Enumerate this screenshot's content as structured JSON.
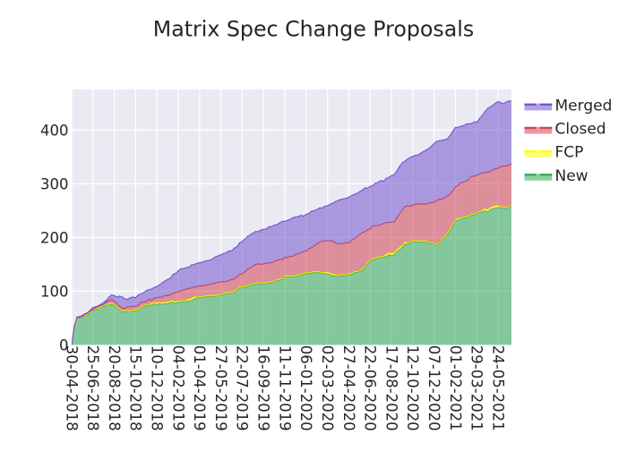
{
  "chart_data": {
    "type": "area",
    "title": "Matrix Spec Change Proposals",
    "stacked": true,
    "x_tick_labels": [
      "30-04-2018",
      "25-06-2018",
      "20-08-2018",
      "15-10-2018",
      "10-12-2018",
      "04-02-2019",
      "01-04-2019",
      "27-05-2019",
      "22-07-2019",
      "16-09-2019",
      "11-11-2019",
      "06-01-2020",
      "02-03-2020",
      "27-04-2020",
      "22-06-2020",
      "17-08-2020",
      "12-10-2020",
      "07-12-2020",
      "01-02-2021",
      "29-03-2021",
      "24-05-2021"
    ],
    "x_tick_interval_weeks": 8,
    "y_ticks": [
      0,
      100,
      200,
      300,
      400
    ],
    "ylim": [
      0,
      475.5
    ],
    "grid": "white on light-blue panel",
    "legend_position": "outside upper right",
    "plot_bg": "#EAEAF2",
    "text_color": "#262626",
    "fill_alpha": 0.55,
    "legend": [
      {
        "label": "Merged",
        "color": "#7253CE"
      },
      {
        "label": "Closed",
        "color": "#CF4454"
      },
      {
        "label": "FCP",
        "color": "#FFFF00"
      },
      {
        "label": "New",
        "color": "#32AA56"
      }
    ],
    "series": [
      {
        "name": "New",
        "color": "#32AA56",
        "values": [
          0,
          33,
          50,
          51,
          51,
          54,
          56,
          58,
          64,
          66,
          67,
          70,
          72,
          74,
          75,
          76,
          74,
          69,
          65,
          62,
          63,
          62,
          62,
          64,
          63,
          65,
          69,
          71,
          74,
          74,
          75,
          77,
          75,
          77,
          76,
          77,
          77,
          79,
          80,
          78,
          80,
          80,
          81,
          81,
          82,
          83,
          86,
          88,
          88,
          88,
          90,
          90,
          90,
          91,
          91,
          92,
          92,
          95,
          95,
          97,
          97,
          98,
          102,
          106,
          107,
          108,
          109,
          111,
          113,
          113,
          115,
          113,
          113,
          115,
          116,
          116,
          117,
          120,
          121,
          122,
          127,
          127,
          127,
          127,
          128,
          129,
          130,
          132,
          133,
          133,
          134,
          135,
          135,
          135,
          133,
          132,
          133,
          131,
          129,
          129,
          128,
          129,
          130,
          129,
          131,
          132,
          135,
          135,
          137,
          140,
          145,
          151,
          156,
          160,
          160,
          162,
          163,
          164,
          165,
          168,
          167,
          168,
          174,
          178,
          182,
          188,
          189,
          190,
          192,
          193,
          192,
          192,
          192,
          192,
          190,
          188,
          188,
          185,
          189,
          196,
          200,
          206,
          214,
          222,
          231,
          233,
          235,
          236,
          238,
          239,
          242,
          242,
          245,
          247,
          248,
          250,
          248,
          252,
          254,
          255,
          256,
          256,
          255,
          254,
          257,
          259
        ]
      },
      {
        "name": "FCP",
        "color": "#FFFF00",
        "values": [
          0,
          0,
          1,
          1,
          1,
          1,
          2,
          2,
          2,
          2,
          2,
          2,
          2,
          2,
          2,
          2,
          2,
          2,
          2,
          2,
          2,
          2,
          2,
          2,
          2,
          2,
          2,
          2,
          2,
          2,
          3,
          3,
          3,
          3,
          3,
          3,
          3,
          3,
          3,
          3,
          2,
          2,
          2,
          2,
          4,
          4,
          4,
          2,
          2,
          2,
          2,
          2,
          2,
          2,
          2,
          2,
          2,
          2,
          2,
          2,
          2,
          2,
          2,
          2,
          2,
          2,
          2,
          2,
          2,
          2,
          2,
          2,
          2,
          2,
          2,
          2,
          2,
          2,
          2,
          2,
          2,
          2,
          2,
          2,
          2,
          2,
          2,
          2,
          2,
          2,
          2,
          2,
          2,
          2,
          2,
          3,
          3,
          3,
          3,
          3,
          2,
          2,
          2,
          2,
          2,
          2,
          2,
          2,
          2,
          2,
          2,
          2,
          2,
          2,
          2,
          2,
          2,
          2,
          4,
          4,
          4,
          4,
          4,
          4,
          4,
          4,
          2,
          2,
          2,
          2,
          2,
          2,
          2,
          2,
          2,
          2,
          2,
          2,
          2,
          2,
          3,
          3,
          3,
          3,
          3,
          3,
          2,
          2,
          2,
          2,
          2,
          2,
          2,
          2,
          2,
          4,
          4,
          4,
          4,
          4,
          4,
          2,
          2,
          2,
          2,
          2
        ]
      },
      {
        "name": "Closed",
        "color": "#CF4454",
        "values": [
          0,
          1,
          0,
          0,
          1,
          2,
          1,
          3,
          0,
          1,
          3,
          2,
          1,
          4,
          5,
          7,
          5,
          6,
          5,
          5,
          3,
          7,
          7,
          6,
          7,
          7,
          8,
          7,
          5,
          9,
          5,
          7,
          10,
          9,
          10,
          12,
          12,
          11,
          13,
          17,
          17,
          19,
          19,
          21,
          19,
          19,
          18,
          18,
          20,
          20,
          19,
          20,
          21,
          21,
          22,
          23,
          23,
          21,
          21,
          21,
          23,
          23,
          23,
          23,
          24,
          26,
          30,
          30,
          32,
          35,
          34,
          35,
          36,
          35,
          35,
          35,
          37,
          35,
          36,
          35,
          34,
          34,
          36,
          36,
          38,
          39,
          39,
          40,
          40,
          44,
          45,
          47,
          51,
          54,
          58,
          59,
          58,
          60,
          61,
          58,
          58,
          58,
          57,
          59,
          57,
          61,
          61,
          64,
          66,
          67,
          64,
          61,
          58,
          60,
          60,
          58,
          59,
          60,
          59,
          56,
          58,
          57,
          58,
          62,
          65,
          65,
          68,
          66,
          66,
          67,
          69,
          68,
          69,
          68,
          72,
          75,
          76,
          82,
          80,
          74,
          71,
          68,
          64,
          62,
          60,
          61,
          65,
          65,
          65,
          67,
          70,
          70,
          69,
          69,
          70,
          67,
          69,
          67,
          68,
          69,
          69,
          74,
          76,
          77,
          76,
          76
        ]
      },
      {
        "name": "Merged",
        "color": "#7253CE",
        "values": [
          0,
          1,
          1,
          1,
          2,
          1,
          1,
          2,
          4,
          2,
          1,
          2,
          4,
          3,
          7,
          8,
          11,
          12,
          19,
          20,
          18,
          14,
          17,
          17,
          16,
          19,
          16,
          17,
          20,
          18,
          21,
          20,
          21,
          23,
          27,
          27,
          30,
          31,
          35,
          35,
          39,
          41,
          40,
          40,
          40,
          43,
          42,
          44,
          43,
          44,
          45,
          45,
          45,
          47,
          49,
          49,
          51,
          52,
          54,
          55,
          53,
          57,
          56,
          59,
          60,
          61,
          61,
          62,
          61,
          61,
          60,
          64,
          64,
          64,
          67,
          67,
          67,
          67,
          68,
          71,
          67,
          69,
          69,
          72,
          70,
          69,
          70,
          66,
          68,
          66,
          68,
          66,
          64,
          64,
          62,
          64,
          65,
          68,
          71,
          77,
          81,
          82,
          83,
          83,
          85,
          83,
          82,
          81,
          80,
          79,
          81,
          78,
          79,
          75,
          79,
          81,
          82,
          79,
          82,
          84,
          86,
          88,
          88,
          88,
          88,
          85,
          87,
          91,
          91,
          91,
          91,
          95,
          97,
          101,
          102,
          105,
          109,
          110,
          109,
          109,
          108,
          107,
          109,
          111,
          111,
          108,
          105,
          105,
          106,
          104,
          98,
          101,
          99,
          103,
          107,
          113,
          119,
          120,
          120,
          122,
          124,
          119,
          116,
          119,
          119,
          117
        ]
      }
    ]
  }
}
